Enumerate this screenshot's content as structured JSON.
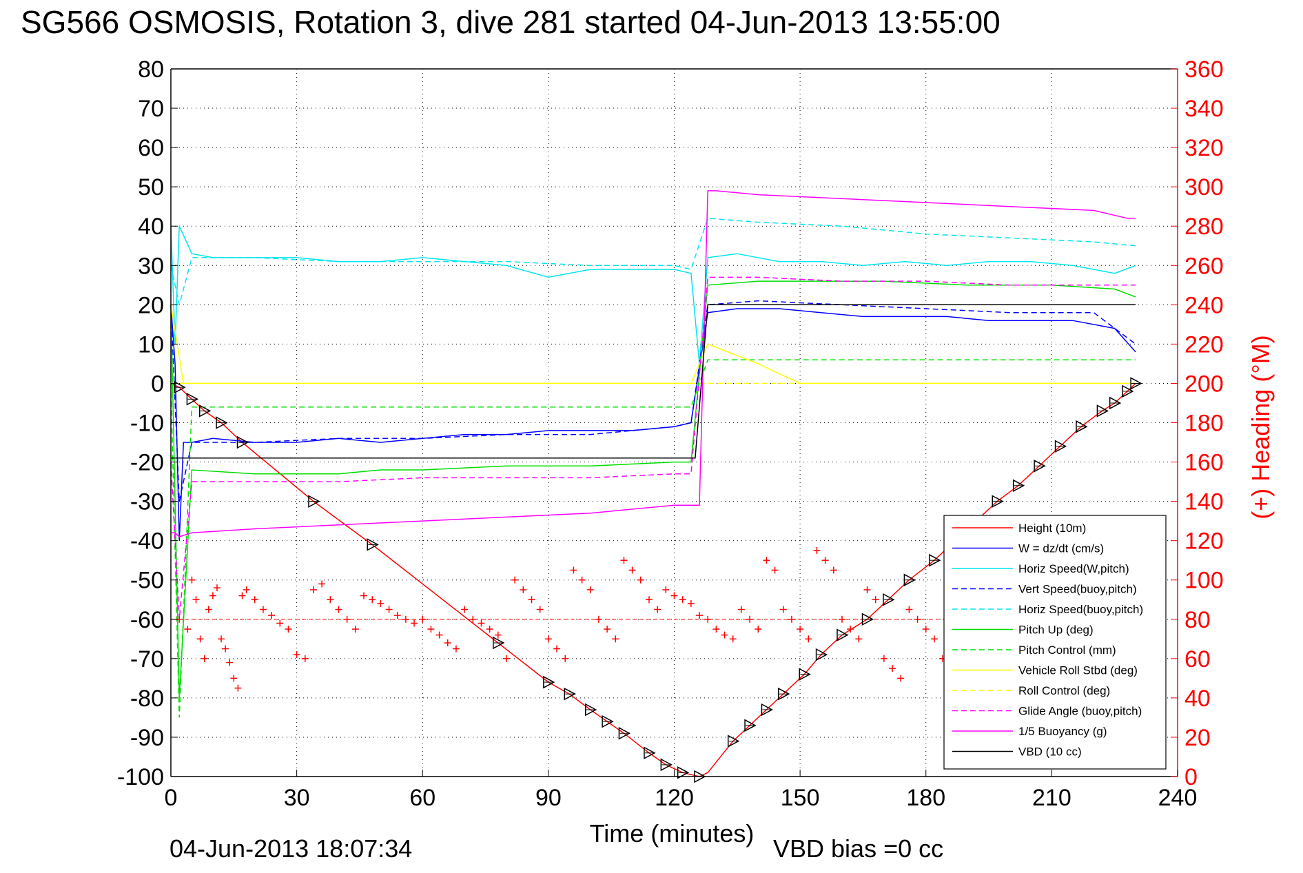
{
  "chart_data": {
    "type": "line",
    "title": "SG566 OSMOSIS, Rotation 3, dive 281 started 04-Jun-2013 13:55:00",
    "xlabel": "Time (minutes)",
    "ylabel_left": "",
    "ylabel_right": "(+) Heading (°M)",
    "xlim": [
      0,
      240
    ],
    "ylim_left": [
      -100,
      80
    ],
    "ylim_right": [
      0,
      360
    ],
    "x_ticks": [
      0,
      30,
      60,
      90,
      120,
      150,
      180,
      210,
      240
    ],
    "y_ticks_left": [
      80,
      70,
      60,
      50,
      40,
      30,
      20,
      10,
      0,
      -10,
      -20,
      -30,
      -40,
      -50,
      -60,
      -70,
      -80,
      -90,
      -100
    ],
    "y_ticks_right": [
      360,
      340,
      320,
      300,
      280,
      260,
      240,
      220,
      200,
      180,
      160,
      140,
      120,
      100,
      80,
      60,
      40,
      20,
      0
    ],
    "grid": true,
    "legend_position": "bottom-right",
    "footer_left": "04-Jun-2013 18:07:34",
    "footer_right": "VBD bias =0 cc",
    "series": [
      {
        "name": "Height (10m)",
        "color": "#ff0000",
        "style": "solid",
        "x": [
          0,
          2,
          5,
          8,
          12,
          17,
          34,
          48,
          78,
          90,
          95,
          100,
          104,
          108,
          114,
          118,
          122,
          126,
          128,
          134,
          138,
          142,
          146,
          151,
          155,
          160,
          166,
          171,
          176,
          182,
          186,
          192,
          197,
          202,
          207,
          212,
          217,
          222,
          225,
          228,
          230
        ],
        "y": [
          0,
          -1,
          -4,
          -7,
          -10,
          -15,
          -30,
          -41,
          -66,
          -76,
          -79,
          -83,
          -86,
          -89,
          -94,
          -97,
          -99,
          -100,
          -99,
          -91,
          -87,
          -83,
          -79,
          -74,
          -69,
          -64,
          -60,
          -55,
          -50,
          -45,
          -41,
          -35,
          -30,
          -26,
          -21,
          -16,
          -11,
          -7,
          -5,
          -2,
          0
        ]
      },
      {
        "name": "W = dz/dt (cm/s)",
        "color": "#0000ff",
        "style": "solid",
        "x": [
          0,
          1,
          2,
          3,
          5,
          10,
          20,
          30,
          40,
          50,
          60,
          70,
          80,
          90,
          100,
          110,
          120,
          124,
          128,
          135,
          145,
          155,
          165,
          175,
          185,
          195,
          205,
          215,
          225,
          230
        ],
        "y": [
          20,
          5,
          -40,
          -15,
          -15,
          -14,
          -15,
          -15,
          -14,
          -15,
          -14,
          -13,
          -13,
          -12,
          -12,
          -12,
          -11,
          -10,
          18,
          19,
          19,
          18,
          17,
          17,
          17,
          16,
          16,
          16,
          14,
          8
        ]
      },
      {
        "name": "Horiz Speed(W,pitch)",
        "color": "#00e5ee",
        "style": "solid",
        "x": [
          0,
          1,
          2,
          5,
          10,
          20,
          30,
          40,
          50,
          60,
          70,
          80,
          90,
          100,
          110,
          120,
          124,
          126,
          128,
          135,
          145,
          155,
          165,
          175,
          185,
          195,
          205,
          215,
          225,
          230
        ],
        "y": [
          40,
          10,
          40,
          33,
          32,
          32,
          32,
          31,
          31,
          32,
          31,
          30,
          27,
          29,
          29,
          29,
          28,
          5,
          32,
          33,
          31,
          31,
          30,
          31,
          30,
          31,
          31,
          30,
          28,
          30
        ]
      },
      {
        "name": "Vert Speed(buoy,pitch)",
        "color": "#0000ff",
        "style": "dashed",
        "x": [
          0,
          2,
          5,
          20,
          40,
          60,
          80,
          100,
          120,
          124,
          128,
          140,
          160,
          180,
          200,
          220,
          230
        ],
        "y": [
          20,
          -30,
          -15,
          -15,
          -14,
          -14,
          -13,
          -13,
          -11,
          -10,
          20,
          21,
          20,
          19,
          18,
          18,
          10
        ]
      },
      {
        "name": "Horiz Speed(buoy,pitch)",
        "color": "#00e5ee",
        "style": "dashed",
        "x": [
          0,
          2,
          5,
          20,
          40,
          60,
          80,
          100,
          120,
          124,
          128,
          140,
          160,
          180,
          200,
          220,
          230
        ],
        "y": [
          30,
          20,
          32,
          32,
          31,
          31,
          31,
          30,
          30,
          29,
          42,
          41,
          40,
          38,
          37,
          36,
          35
        ]
      },
      {
        "name": "Pitch Up (deg)",
        "color": "#00dd00",
        "style": "solid",
        "x": [
          0,
          2,
          5,
          20,
          40,
          50,
          60,
          80,
          100,
          120,
          124,
          128,
          140,
          150,
          170,
          190,
          210,
          225,
          230
        ],
        "y": [
          20,
          -80,
          -22,
          -23,
          -23,
          -22,
          -22,
          -21,
          -21,
          -20,
          -20,
          25,
          26,
          26,
          26,
          25,
          25,
          24,
          22
        ]
      },
      {
        "name": "Pitch Control (mm)",
        "color": "#00dd00",
        "style": "dashed",
        "x": [
          0,
          2,
          5,
          30,
          60,
          90,
          120,
          124,
          128,
          140,
          170,
          200,
          230
        ],
        "y": [
          0,
          -85,
          -6,
          -6,
          -6,
          -6,
          -6,
          -6,
          6,
          6,
          6,
          6,
          6
        ]
      },
      {
        "name": "Vehicle Roll Stbd (deg)",
        "color": "#ffff00",
        "style": "solid",
        "x": [
          0,
          3,
          5,
          20,
          40,
          60,
          80,
          100,
          120,
          124,
          128,
          140,
          150,
          170,
          190,
          210,
          230
        ],
        "y": [
          20,
          0,
          0,
          0,
          0,
          0,
          0,
          0,
          0,
          0,
          10,
          5,
          0,
          0,
          0,
          0,
          0
        ]
      },
      {
        "name": "Roll Control (deg)",
        "color": "#ffff00",
        "style": "dashed",
        "x": [
          0,
          3,
          5,
          40,
          80,
          120,
          124,
          128,
          170,
          230
        ],
        "y": [
          0,
          0,
          0,
          0,
          0,
          0,
          0,
          0,
          0,
          0
        ]
      },
      {
        "name": "Glide Angle (buoy,pitch)",
        "color": "#ff00ff",
        "style": "dashed",
        "x": [
          0,
          2,
          5,
          20,
          40,
          60,
          80,
          100,
          120,
          124,
          128,
          140,
          160,
          180,
          200,
          220,
          230
        ],
        "y": [
          -20,
          -60,
          -25,
          -25,
          -25,
          -24,
          -24,
          -24,
          -23,
          -23,
          27,
          27,
          26,
          26,
          25,
          25,
          25
        ]
      },
      {
        "name": "1/5 Buoyancy (g)",
        "color": "#ff00ff",
        "style": "solid",
        "x": [
          0,
          1,
          2,
          5,
          20,
          40,
          60,
          80,
          100,
          120,
          126,
          128,
          130,
          140,
          160,
          180,
          200,
          220,
          228,
          230
        ],
        "y": [
          -38,
          -38,
          -39,
          -38,
          -37,
          -36,
          -35,
          -34,
          -33,
          -31,
          -31,
          49,
          49,
          48,
          47,
          46,
          45,
          44,
          42,
          42
        ]
      },
      {
        "name": "VBD (10 cc)",
        "color": "#000000",
        "style": "solid",
        "x": [
          0,
          1,
          2,
          125,
          128,
          230
        ],
        "y": [
          -19,
          -19,
          -19,
          -19,
          20,
          20
        ]
      }
    ],
    "heading_points": {
      "name": "Heading",
      "color": "#ff0000",
      "marker": "+",
      "mean_heading": 80,
      "x": [
        2,
        4,
        5,
        6,
        7,
        8,
        9,
        10,
        11,
        12,
        13,
        14,
        15,
        16,
        17,
        18,
        20,
        22,
        24,
        26,
        28,
        30,
        32,
        34,
        36,
        38,
        40,
        42,
        44,
        46,
        48,
        50,
        52,
        54,
        56,
        58,
        60,
        62,
        64,
        66,
        68,
        70,
        72,
        74,
        76,
        78,
        80,
        82,
        84,
        86,
        88,
        90,
        92,
        94,
        96,
        98,
        100,
        102,
        104,
        106,
        108,
        110,
        112,
        114,
        116,
        118,
        120,
        122,
        124,
        126,
        128,
        130,
        132,
        134,
        136,
        138,
        140,
        142,
        144,
        146,
        148,
        150,
        152,
        154,
        156,
        158,
        160,
        162,
        164,
        166,
        168,
        170,
        172,
        174,
        176,
        178,
        180,
        182,
        184,
        186,
        188,
        190,
        192,
        194,
        196,
        198,
        200,
        202,
        204,
        206,
        208,
        210,
        212,
        214,
        216,
        218,
        220,
        222,
        224,
        226,
        228,
        230
      ],
      "y": [
        80,
        75,
        100,
        90,
        70,
        60,
        85,
        92,
        96,
        70,
        65,
        58,
        50,
        45,
        92,
        95,
        90,
        85,
        82,
        78,
        75,
        62,
        60,
        95,
        98,
        90,
        85,
        80,
        75,
        92,
        90,
        88,
        85,
        82,
        80,
        78,
        80,
        75,
        72,
        68,
        65,
        85,
        80,
        78,
        75,
        72,
        60,
        100,
        95,
        90,
        85,
        70,
        65,
        60,
        105,
        100,
        95,
        80,
        75,
        70,
        110,
        105,
        100,
        90,
        85,
        95,
        92,
        90,
        88,
        82,
        80,
        75,
        72,
        70,
        85,
        80,
        75,
        110,
        105,
        85,
        80,
        75,
        70,
        115,
        110,
        105,
        80,
        75,
        70,
        95,
        90,
        60,
        55,
        50,
        85,
        80,
        75,
        70,
        60,
        55,
        50,
        90,
        85,
        95,
        100,
        110,
        105,
        100,
        90,
        85,
        80,
        75,
        70,
        65,
        60,
        55,
        90,
        85,
        80,
        95,
        100,
        90
      ]
    },
    "depth_markers_x": [
      2,
      5,
      8,
      12,
      17,
      34,
      48,
      78,
      90,
      95,
      100,
      104,
      108,
      114,
      118,
      122,
      126,
      134,
      138,
      142,
      146,
      151,
      155,
      160,
      166,
      171,
      176,
      182,
      192,
      197,
      202,
      207,
      212,
      217,
      222,
      225,
      228,
      230
    ]
  }
}
